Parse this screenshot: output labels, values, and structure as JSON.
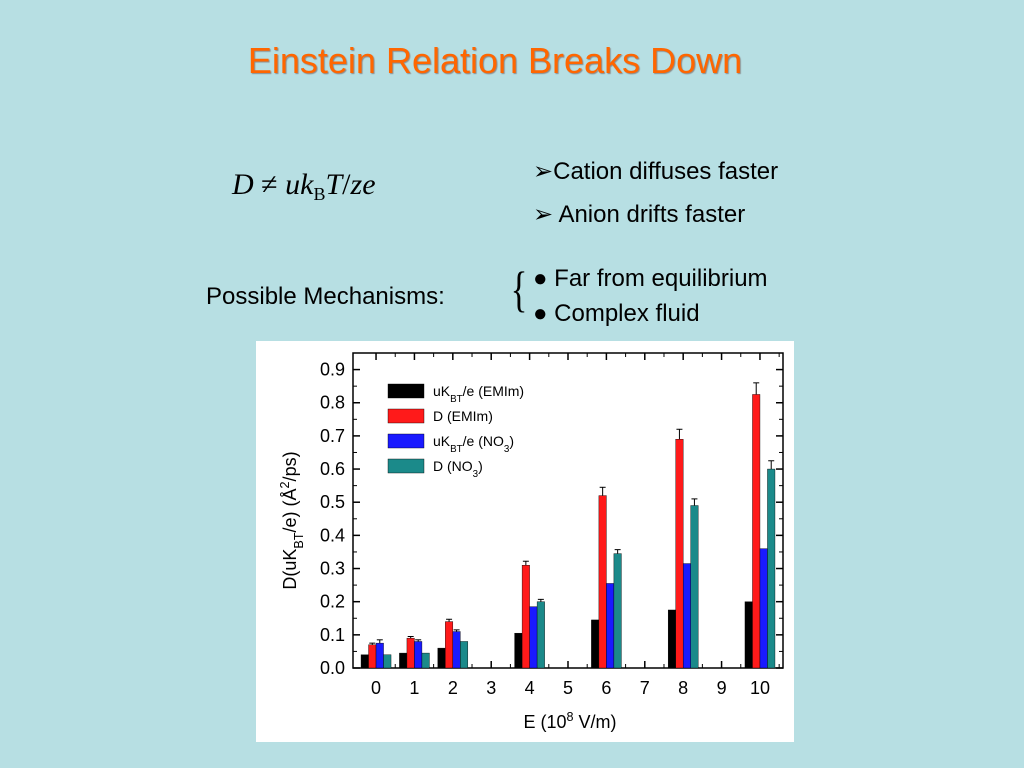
{
  "slide": {
    "title": "Einstein Relation Breaks Down",
    "equation": {
      "lhs": "D",
      "neq": "≠",
      "u": "uk",
      "sub": "B",
      "t": "T",
      "slash": "/",
      "ze": "ze"
    },
    "bullets": [
      "➢Cation diffuses faster",
      "➢ Anion drifts faster"
    ],
    "mechanisms": {
      "label": "Possible Mechanisms:",
      "brace": "{",
      "items": [
        "● Far from equilibrium",
        "● Complex fluid"
      ]
    }
  },
  "chart_data": {
    "type": "bar",
    "xlabel": "E (10^8 V/m)",
    "ylabel": "D(uK_BT/e) (Å^2/ps)",
    "ylim": [
      0.0,
      0.95
    ],
    "xlim": [
      -0.6,
      10.6
    ],
    "yticks": [
      "0.0",
      "0.1",
      "0.2",
      "0.3",
      "0.4",
      "0.5",
      "0.6",
      "0.7",
      "0.8",
      "0.9"
    ],
    "xticks": [
      "0",
      "1",
      "2",
      "3",
      "4",
      "5",
      "6",
      "7",
      "8",
      "9",
      "10"
    ],
    "x": [
      0,
      1,
      2,
      4,
      6,
      8,
      10
    ],
    "legend_position": "top-left",
    "series": [
      {
        "name": "uK_BT/e (EMIm)",
        "color": "#000000",
        "values": [
          0.04,
          0.045,
          0.06,
          0.105,
          0.145,
          0.175,
          0.2
        ],
        "errors": [
          0,
          0,
          0,
          0,
          0,
          0,
          0
        ]
      },
      {
        "name": "D (EMIm)",
        "color": "#ff1a1a",
        "values": [
          0.07,
          0.09,
          0.14,
          0.31,
          0.52,
          0.69,
          0.825
        ],
        "errors": [
          0.005,
          0.005,
          0.007,
          0.012,
          0.025,
          0.03,
          0.035
        ]
      },
      {
        "name": "uK_BT/e (NO_3)",
        "color": "#1a1aff",
        "values": [
          0.075,
          0.08,
          0.11,
          0.185,
          0.255,
          0.315,
          0.36
        ],
        "errors": [
          0.01,
          0.005,
          0.005,
          0,
          0,
          0,
          0
        ]
      },
      {
        "name": "D (NO_3)",
        "color": "#1b8a8a",
        "values": [
          0.04,
          0.045,
          0.08,
          0.2,
          0.345,
          0.49,
          0.6
        ],
        "errors": [
          0,
          0,
          0,
          0.007,
          0.012,
          0.02,
          0.025
        ]
      }
    ]
  }
}
